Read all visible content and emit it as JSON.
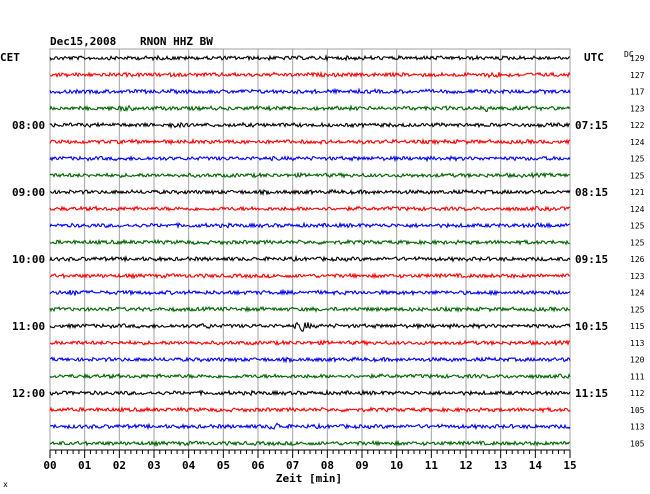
{
  "header": {
    "date": "Dec15,2008",
    "station": "RNON HHZ BW"
  },
  "left_zone_label": "CET",
  "right_zone_label": "UTC",
  "dc_label": "DC",
  "footer_mark": "x",
  "colors": {
    "black": "#000000",
    "red": "#ff0000",
    "blue": "#0000ff",
    "green": "#006400",
    "grid": "#a0a0a0"
  },
  "chart_data": {
    "type": "line",
    "title": "Dec15,2008   RNON HHZ BW",
    "xlabel": "Zeit [min]",
    "ylabel": "",
    "xlim": [
      0,
      15
    ],
    "x_ticks": [
      "00",
      "01",
      "02",
      "03",
      "04",
      "05",
      "06",
      "07",
      "08",
      "09",
      "10",
      "11",
      "12",
      "13",
      "14",
      "15"
    ],
    "trace_color_cycle": [
      "black",
      "red",
      "blue",
      "green"
    ],
    "left_time_labels": [
      {
        "row": 4,
        "label": "08:00"
      },
      {
        "row": 8,
        "label": "09:00"
      },
      {
        "row": 12,
        "label": "10:00"
      },
      {
        "row": 16,
        "label": "11:00"
      },
      {
        "row": 20,
        "label": "12:00"
      }
    ],
    "right_time_labels": [
      {
        "row": 4,
        "label": "07:15"
      },
      {
        "row": 8,
        "label": "08:15"
      },
      {
        "row": 12,
        "label": "09:15"
      },
      {
        "row": 16,
        "label": "10:15"
      },
      {
        "row": 20,
        "label": "11:15"
      }
    ],
    "dc_values": [
      "129",
      "127",
      "117",
      "123",
      "122",
      "124",
      "125",
      "125",
      "121",
      "124",
      "125",
      "125",
      "126",
      "123",
      "124",
      "125",
      "115",
      "113",
      "120",
      "111",
      "112",
      "105",
      "113",
      "105"
    ],
    "events": [
      {
        "row": 1,
        "minute": 12.8,
        "amplitude": 2.2
      },
      {
        "row": 3,
        "minute": 2.2,
        "amplitude": 1.6
      },
      {
        "row": 3,
        "minute": 12.7,
        "amplitude": 3.0
      },
      {
        "row": 4,
        "minute": 3.6,
        "amplitude": 1.6
      },
      {
        "row": 10,
        "minute": 14.2,
        "amplitude": 1.6
      },
      {
        "row": 14,
        "minute": 0.7,
        "amplitude": 2.0
      },
      {
        "row": 16,
        "minute": 7.3,
        "amplitude": 4.5
      },
      {
        "row": 16,
        "minute": 4.5,
        "amplitude": 1.6
      },
      {
        "row": 22,
        "minute": 6.5,
        "amplitude": 2.6
      }
    ]
  }
}
